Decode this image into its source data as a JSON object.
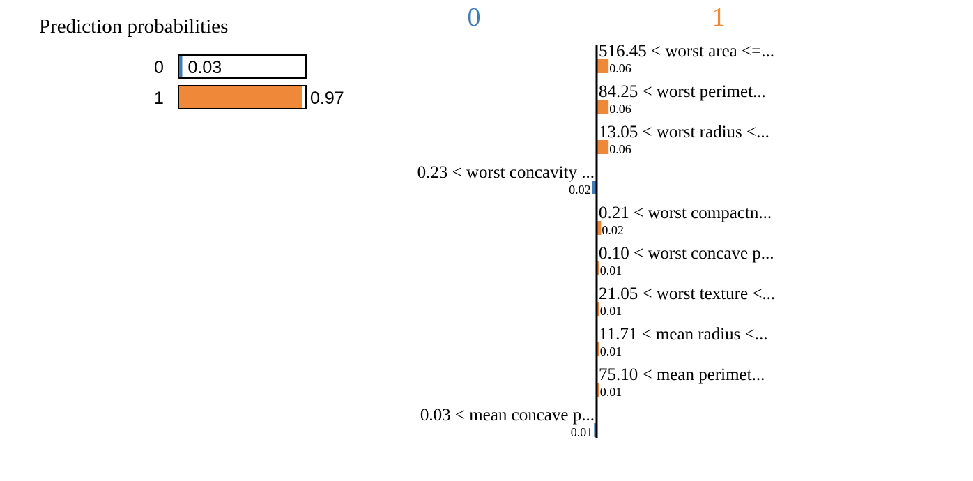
{
  "colors": {
    "class0": "#3E7DB9",
    "class1": "#F0883A",
    "text": "#000000"
  },
  "prediction": {
    "title": "Prediction probabilities",
    "classes": [
      {
        "label": "0",
        "value": 0.03,
        "value_label": "0.03",
        "color": "#3E7DB9"
      },
      {
        "label": "1",
        "value": 0.97,
        "value_label": "0.97",
        "color": "#F0883A"
      }
    ]
  },
  "chart_data": {
    "type": "bar",
    "orientation": "horizontal",
    "class_headers": [
      {
        "label": "0",
        "color": "#3E7DB9"
      },
      {
        "label": "1",
        "color": "#F0883A"
      }
    ],
    "features": [
      {
        "label": "516.45 < worst area <=...",
        "weight": 0.06,
        "weight_label": "0.06",
        "class": "1"
      },
      {
        "label": "84.25 < worst perimet...",
        "weight": 0.06,
        "weight_label": "0.06",
        "class": "1"
      },
      {
        "label": "13.05 < worst radius <...",
        "weight": 0.06,
        "weight_label": "0.06",
        "class": "1"
      },
      {
        "label": "0.23 < worst concavity ...",
        "weight": 0.02,
        "weight_label": "0.02",
        "class": "0"
      },
      {
        "label": "0.21 < worst compactn...",
        "weight": 0.02,
        "weight_label": "0.02",
        "class": "1"
      },
      {
        "label": "0.10 < worst concave p...",
        "weight": 0.01,
        "weight_label": "0.01",
        "class": "1"
      },
      {
        "label": "21.05 < worst texture <...",
        "weight": 0.01,
        "weight_label": "0.01",
        "class": "1"
      },
      {
        "label": "11.71 < mean radius <...",
        "weight": 0.01,
        "weight_label": "0.01",
        "class": "1"
      },
      {
        "label": "75.10 < mean perimet...",
        "weight": 0.01,
        "weight_label": "0.01",
        "class": "1"
      },
      {
        "label": "0.03 < mean concave p...",
        "weight": 0.01,
        "weight_label": "0.01",
        "class": "0"
      }
    ]
  }
}
